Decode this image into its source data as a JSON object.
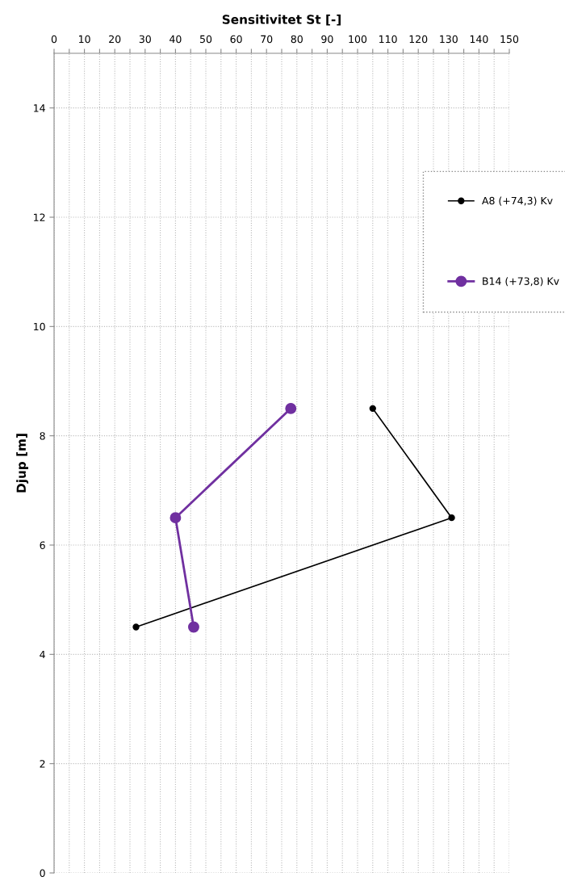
{
  "chart_data": {
    "type": "line",
    "xlabel": "Sensitivitet St [-]",
    "ylabel": "Djup [m]",
    "xlim": [
      0,
      150
    ],
    "ylim": [
      0,
      15
    ],
    "xticks": [
      0,
      {
        "value": 5,
        "label": null
      },
      10,
      {
        "value": 15,
        "label": null
      },
      20,
      {
        "value": 25,
        "label": null
      },
      30,
      {
        "value": 35,
        "label": null
      },
      40,
      {
        "value": 45,
        "label": null
      },
      50,
      {
        "value": 55,
        "label": null
      },
      60,
      {
        "value": 65,
        "label": null
      },
      70,
      {
        "value": 75,
        "label": null
      },
      80,
      {
        "value": 85,
        "label": null
      },
      90,
      {
        "value": 95,
        "label": null
      },
      100,
      {
        "value": 105,
        "label": null
      },
      110,
      {
        "value": 115,
        "label": null
      },
      120,
      {
        "value": 125,
        "label": null
      },
      130,
      {
        "value": 135,
        "label": null
      },
      140,
      {
        "value": 145,
        "label": null
      },
      150
    ],
    "yticks": [
      0,
      2,
      4,
      6,
      8,
      10,
      12,
      14
    ],
    "grid": true,
    "legend": "right",
    "marker": "circle",
    "series": [
      {
        "name": "A8 (+74,3) Kv",
        "color": "#000000",
        "x": [
          105,
          131,
          27
        ],
        "values": [
          8.5,
          6.5,
          4.5
        ]
      },
      {
        "name": "B14 (+73,8) Kv",
        "color": "#7030a0",
        "x": [
          78,
          40,
          46
        ],
        "values": [
          8.5,
          6.5,
          4.5
        ]
      }
    ]
  }
}
